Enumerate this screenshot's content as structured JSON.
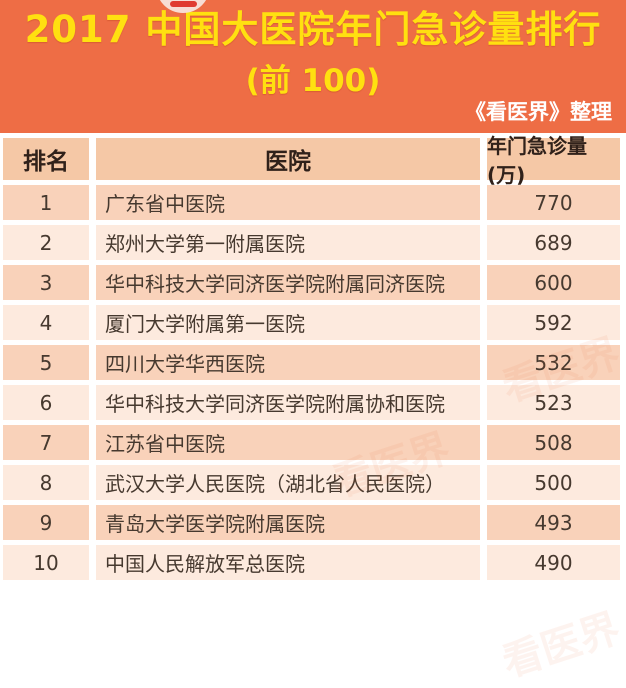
{
  "banner": {
    "title": "2017 中国大医院年门急诊量排行",
    "subtitle": "(前 100)",
    "credit": "《看医界》整理"
  },
  "table": {
    "columns": [
      "排名",
      "医院",
      "年门急诊量(万)"
    ],
    "rows": [
      {
        "rank": "1",
        "hospital": "广东省中医院",
        "value": "770"
      },
      {
        "rank": "2",
        "hospital": "郑州大学第一附属医院",
        "value": "689"
      },
      {
        "rank": "3",
        "hospital": "华中科技大学同济医学院附属同济医院",
        "value": "600"
      },
      {
        "rank": "4",
        "hospital": "厦门大学附属第一医院",
        "value": "592"
      },
      {
        "rank": "5",
        "hospital": "四川大学华西医院",
        "value": "532"
      },
      {
        "rank": "6",
        "hospital": "华中科技大学同济医学院附属协和医院",
        "value": "523"
      },
      {
        "rank": "7",
        "hospital": "江苏省中医院",
        "value": "508"
      },
      {
        "rank": "8",
        "hospital": "武汉大学人民医院（湖北省人民医院）",
        "value": "500"
      },
      {
        "rank": "9",
        "hospital": "青岛大学医学院附属医院",
        "value": "493"
      },
      {
        "rank": "10",
        "hospital": "中国人民解放军总医院",
        "value": "490"
      }
    ]
  },
  "watermark": {
    "text": "看医界"
  },
  "colors": {
    "banner_background": "#ee6d45",
    "title_yellow": "#ffe010",
    "credit_white": "#ffffff",
    "header_cell": "#f5c8a6",
    "row_odd": "#f9d2ba",
    "row_even": "#fdeade",
    "text_dark": "#46392f"
  },
  "chart_data": {
    "type": "table",
    "title": "2017 中国大医院年门急诊量排行",
    "subtitle": "(前 100)",
    "source": "《看医界》整理",
    "columns": [
      "排名",
      "医院",
      "年门急诊量(万)"
    ],
    "categories": [
      "广东省中医院",
      "郑州大学第一附属医院",
      "华中科技大学同济医学院附属同济医院",
      "厦门大学附属第一医院",
      "四川大学华西医院",
      "华中科技大学同济医学院附属协和医院",
      "江苏省中医院",
      "武汉大学人民医院（湖北省人民医院）",
      "青岛大学医学院附属医院",
      "中国人民解放军总医院"
    ],
    "values": [
      770,
      689,
      600,
      592,
      532,
      523,
      508,
      500,
      493,
      490
    ],
    "ylabel": "年门急诊量(万)"
  }
}
